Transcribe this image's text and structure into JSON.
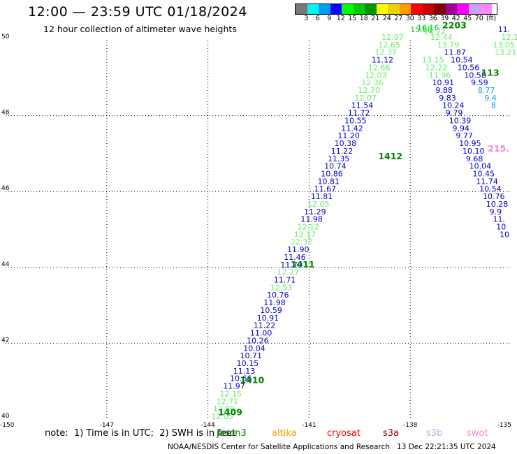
{
  "title": "12:00 — 23:59 UTC 01/18/2024",
  "subtitle": "12 hour collection of altimeter wave heights",
  "legend": {
    "unit": "(ft)",
    "ticks": [
      "3",
      "6",
      "9",
      "12",
      "15",
      "18",
      "21",
      "24",
      "27",
      "30",
      "33",
      "36",
      "39",
      "42",
      "45",
      "70"
    ],
    "colors": [
      "#787878",
      "#00f5f5",
      "#00a0f0",
      "#0000ff",
      "#00ff00",
      "#00cc00",
      "#009600",
      "#ffff00",
      "#f0d200",
      "#ff9b00",
      "#ff0000",
      "#c80000",
      "#820000",
      "#a000a0",
      "#ff00ff",
      "#cda0ff",
      "#ff88ff"
    ]
  },
  "note": "note:  1) Time is in UTC;  2) SWH is in feet",
  "satellites": [
    {
      "name": "jason3",
      "color": "#008000"
    },
    {
      "name": "altika",
      "color": "#ff9900"
    },
    {
      "name": "cryosat",
      "color": "#ff0000"
    },
    {
      "name": "s3a",
      "color": "#8b0000"
    },
    {
      "name": "s3b",
      "color": "#c8a8e8"
    },
    {
      "name": "swot",
      "color": "#ff88cc"
    }
  ],
  "footer": "NOAA/NESDIS Center for Satellite Applications and Research   13 Dec 22:21:35 UTC 2024",
  "chart_data": {
    "type": "scatter",
    "xlim": [
      -150,
      -135
    ],
    "ylim": [
      40,
      50
    ],
    "xticks": [
      "-150",
      "-147",
      "-144",
      "-141",
      "-138",
      "-135"
    ],
    "yticks": [
      "40",
      "42",
      "44",
      "46",
      "48",
      "50"
    ],
    "grid": true,
    "color_scale": {
      "green": "#00cc00",
      "light": "#66ee66",
      "blue": "#0000cc",
      "cyan": "#00a0f0",
      "pink": "#ff88cc",
      "pass": "#008000"
    },
    "track_a": [
      {
        "x": -143.9,
        "y": 40.0,
        "v": "12.05",
        "c": "light"
      },
      {
        "x": -143.85,
        "y": 40.2,
        "v": "12.86",
        "c": "light"
      },
      {
        "x": -143.75,
        "y": 40.4,
        "v": "12.71",
        "c": "light"
      },
      {
        "x": -143.65,
        "y": 40.6,
        "v": "12.15",
        "c": "light"
      },
      {
        "x": -143.55,
        "y": 40.8,
        "v": "11.97",
        "c": "blue"
      },
      {
        "x": -143.35,
        "y": 41.0,
        "v": "10.66",
        "c": "blue"
      },
      {
        "x": -143.25,
        "y": 41.2,
        "v": "11.13",
        "c": "blue"
      },
      {
        "x": -143.15,
        "y": 41.4,
        "v": "10.15",
        "c": "blue"
      },
      {
        "x": -143.05,
        "y": 41.6,
        "v": "10.71",
        "c": "blue"
      },
      {
        "x": -142.95,
        "y": 41.8,
        "v": "10.04",
        "c": "blue"
      },
      {
        "x": -142.85,
        "y": 42.0,
        "v": "10.26",
        "c": "blue"
      },
      {
        "x": -142.75,
        "y": 42.2,
        "v": "11.00",
        "c": "blue"
      },
      {
        "x": -142.65,
        "y": 42.4,
        "v": "11.22",
        "c": "blue"
      },
      {
        "x": -142.55,
        "y": 42.6,
        "v": "10.91",
        "c": "blue"
      },
      {
        "x": -142.45,
        "y": 42.8,
        "v": "10.59",
        "c": "blue"
      },
      {
        "x": -142.35,
        "y": 43.0,
        "v": "11.98",
        "c": "blue"
      },
      {
        "x": -142.25,
        "y": 43.2,
        "v": "10.76",
        "c": "blue"
      },
      {
        "x": -142.15,
        "y": 43.4,
        "v": "12.53",
        "c": "light"
      },
      {
        "x": -142.05,
        "y": 43.6,
        "v": "11.71",
        "c": "blue"
      },
      {
        "x": -141.95,
        "y": 43.8,
        "v": "12.27",
        "c": "light"
      },
      {
        "x": -141.85,
        "y": 44.0,
        "v": "11.79",
        "c": "blue"
      },
      {
        "x": -141.75,
        "y": 44.2,
        "v": "11.46",
        "c": "blue"
      },
      {
        "x": -141.65,
        "y": 44.4,
        "v": "11.90",
        "c": "blue"
      },
      {
        "x": -141.55,
        "y": 44.6,
        "v": "12.32",
        "c": "light"
      },
      {
        "x": -141.45,
        "y": 44.8,
        "v": "12.17",
        "c": "light"
      },
      {
        "x": -141.35,
        "y": 45.0,
        "v": "12.12",
        "c": "light"
      },
      {
        "x": -141.25,
        "y": 45.2,
        "v": "11.98",
        "c": "blue"
      },
      {
        "x": -141.15,
        "y": 45.4,
        "v": "11.29",
        "c": "blue"
      },
      {
        "x": -141.05,
        "y": 45.6,
        "v": "12.05",
        "c": "light"
      },
      {
        "x": -140.95,
        "y": 45.8,
        "v": "11.81",
        "c": "blue"
      },
      {
        "x": -140.85,
        "y": 46.0,
        "v": "11.67",
        "c": "blue"
      },
      {
        "x": -140.75,
        "y": 46.2,
        "v": "10.81",
        "c": "blue"
      },
      {
        "x": -140.65,
        "y": 46.4,
        "v": "10.86",
        "c": "blue"
      },
      {
        "x": -140.55,
        "y": 46.6,
        "v": "10.74",
        "c": "blue"
      },
      {
        "x": -140.45,
        "y": 46.8,
        "v": "11.35",
        "c": "blue"
      },
      {
        "x": -140.35,
        "y": 47.0,
        "v": "11.22",
        "c": "blue"
      },
      {
        "x": -140.25,
        "y": 47.2,
        "v": "10.38",
        "c": "blue"
      },
      {
        "x": -140.15,
        "y": 47.4,
        "v": "11.20",
        "c": "blue"
      },
      {
        "x": -140.05,
        "y": 47.6,
        "v": "11.42",
        "c": "blue"
      },
      {
        "x": -139.95,
        "y": 47.8,
        "v": "10.55",
        "c": "blue"
      },
      {
        "x": -139.85,
        "y": 48.0,
        "v": "11.72",
        "c": "blue"
      },
      {
        "x": -139.75,
        "y": 48.2,
        "v": "11.54",
        "c": "blue"
      },
      {
        "x": -139.65,
        "y": 48.4,
        "v": "12.07",
        "c": "light"
      },
      {
        "x": -139.55,
        "y": 48.6,
        "v": "12.70",
        "c": "light"
      },
      {
        "x": -139.45,
        "y": 48.8,
        "v": "12.36",
        "c": "light"
      },
      {
        "x": -139.35,
        "y": 49.0,
        "v": "12.03",
        "c": "light"
      },
      {
        "x": -139.25,
        "y": 49.2,
        "v": "12.66",
        "c": "light"
      },
      {
        "x": -139.15,
        "y": 49.4,
        "v": "11.12",
        "c": "blue"
      },
      {
        "x": -139.05,
        "y": 49.6,
        "v": "12.37",
        "c": "light"
      },
      {
        "x": -138.95,
        "y": 49.8,
        "v": "12.65",
        "c": "light"
      },
      {
        "x": -138.85,
        "y": 50.0,
        "v": "12.97",
        "c": "light"
      }
    ],
    "track_b": [
      {
        "x": -138.0,
        "y": 50.2,
        "v": "15.68",
        "c": "green"
      },
      {
        "x": -137.8,
        "y": 50.25,
        "v": "16.16",
        "c": "green"
      },
      {
        "x": -137.6,
        "y": 50.15,
        "v": "14.72",
        "c": "light"
      },
      {
        "x": -137.4,
        "y": 50.0,
        "v": "12.44",
        "c": "light"
      },
      {
        "x": -137.2,
        "y": 49.8,
        "v": "13.79",
        "c": "light"
      },
      {
        "x": -137.0,
        "y": 49.6,
        "v": "11.87",
        "c": "blue"
      },
      {
        "x": -136.8,
        "y": 49.4,
        "v": "10.54",
        "c": "blue"
      },
      {
        "x": -136.6,
        "y": 49.2,
        "v": "10.56",
        "c": "blue"
      },
      {
        "x": -136.4,
        "y": 49.0,
        "v": "10.58",
        "c": "blue"
      },
      {
        "x": -136.2,
        "y": 48.8,
        "v": "9.59",
        "c": "blue"
      },
      {
        "x": -136.0,
        "y": 48.6,
        "v": "8.77",
        "c": "cyan"
      },
      {
        "x": -135.8,
        "y": 48.4,
        "v": "9.4",
        "c": "cyan"
      },
      {
        "x": -135.6,
        "y": 48.2,
        "v": "8",
        "c": "cyan"
      }
    ],
    "track_c": [
      {
        "x": -137.65,
        "y": 49.4,
        "v": "13.15",
        "c": "light"
      },
      {
        "x": -137.55,
        "y": 49.2,
        "v": "12.22",
        "c": "light"
      },
      {
        "x": -137.45,
        "y": 49.0,
        "v": "11.96",
        "c": "light"
      },
      {
        "x": -137.35,
        "y": 48.8,
        "v": "10.91",
        "c": "blue"
      },
      {
        "x": -137.25,
        "y": 48.6,
        "v": "9.88",
        "c": "blue"
      },
      {
        "x": -137.15,
        "y": 48.4,
        "v": "9.83",
        "c": "blue"
      },
      {
        "x": -137.05,
        "y": 48.2,
        "v": "10.24",
        "c": "blue"
      },
      {
        "x": -136.95,
        "y": 48.0,
        "v": "9.79",
        "c": "blue"
      },
      {
        "x": -136.85,
        "y": 47.8,
        "v": "10.39",
        "c": "blue"
      },
      {
        "x": -136.75,
        "y": 47.6,
        "v": "9.94",
        "c": "blue"
      },
      {
        "x": -136.65,
        "y": 47.4,
        "v": "9.77",
        "c": "blue"
      },
      {
        "x": -136.55,
        "y": 47.2,
        "v": "10.95",
        "c": "blue"
      },
      {
        "x": -136.45,
        "y": 47.0,
        "v": "10.10",
        "c": "blue"
      },
      {
        "x": -136.35,
        "y": 46.8,
        "v": "9.68",
        "c": "blue"
      },
      {
        "x": -136.25,
        "y": 46.6,
        "v": "10.04",
        "c": "blue"
      },
      {
        "x": -136.15,
        "y": 46.4,
        "v": "10.45",
        "c": "blue"
      },
      {
        "x": -136.05,
        "y": 46.2,
        "v": "11.74",
        "c": "blue"
      },
      {
        "x": -135.95,
        "y": 46.0,
        "v": "10.54",
        "c": "blue"
      },
      {
        "x": -135.85,
        "y": 45.8,
        "v": "10.76",
        "c": "blue"
      },
      {
        "x": -135.75,
        "y": 45.6,
        "v": "10.28",
        "c": "blue"
      },
      {
        "x": -135.65,
        "y": 45.4,
        "v": "9.9",
        "c": "blue"
      },
      {
        "x": -135.55,
        "y": 45.2,
        "v": "11.",
        "c": "blue"
      },
      {
        "x": -135.45,
        "y": 45.0,
        "v": "10",
        "c": "blue"
      },
      {
        "x": -135.35,
        "y": 44.8,
        "v": "10",
        "c": "blue"
      }
    ],
    "track_d": [
      {
        "x": -135.4,
        "y": 50.2,
        "v": "11.",
        "c": "blue"
      },
      {
        "x": -135.3,
        "y": 50.0,
        "v": "12.1",
        "c": "light"
      },
      {
        "x": -135.55,
        "y": 49.8,
        "v": "13.05",
        "c": "light"
      },
      {
        "x": -135.5,
        "y": 49.6,
        "v": "13.21",
        "c": "light"
      }
    ],
    "pass_labels": [
      {
        "x": -143.7,
        "y": 40.1,
        "v": "1409"
      },
      {
        "x": -143.05,
        "y": 40.95,
        "v": "1410"
      },
      {
        "x": -141.55,
        "y": 44.0,
        "v": "1411"
      },
      {
        "x": -138.95,
        "y": 46.85,
        "v": "1412"
      },
      {
        "x": -137.05,
        "y": 50.3,
        "v": "2203"
      },
      {
        "x": -135.9,
        "y": 49.05,
        "v": "113"
      }
    ],
    "extra_labels": [
      {
        "x": -135.7,
        "y": 47.05,
        "v": "215.",
        "c": "pink"
      }
    ]
  }
}
